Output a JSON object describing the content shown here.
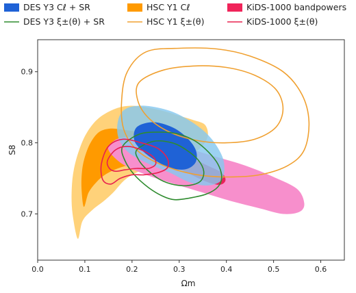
{
  "chart_data": {
    "type": "contour",
    "xlabel": "Ωm",
    "ylabel": "S8",
    "xlim": [
      0.0,
      0.65
    ],
    "ylim": [
      0.635,
      0.945
    ],
    "x_ticks": [
      "0.0",
      "0.1",
      "0.2",
      "0.3",
      "0.4",
      "0.5",
      "0.6"
    ],
    "y_ticks": [
      "0.7",
      "0.8",
      "0.9"
    ],
    "legend": {
      "placement": "top",
      "entries": [
        {
          "id": "des_cl",
          "label": "DES Y3 Cℓ + SR",
          "style": "filled",
          "color": "#1f62d6"
        },
        {
          "id": "hsc_cl",
          "label": "HSC Y1 Cℓ",
          "style": "filled",
          "color": "#ff9a00"
        },
        {
          "id": "kids_bp",
          "label": "KiDS-1000 bandpowers",
          "style": "filled",
          "color": "#f0245a"
        },
        {
          "id": "des_xi",
          "label": "DES Y3 ξ±(θ) + SR",
          "style": "line",
          "color": "#2e8b2e"
        },
        {
          "id": "hsc_xi",
          "label": "HSC Y1 ξ±(θ)",
          "style": "line",
          "color": "#f0a030"
        },
        {
          "id": "kids_xi",
          "label": "KiDS-1000 ξ±(θ)",
          "style": "line",
          "color": "#e8204f"
        }
      ]
    },
    "contours": [
      {
        "series": "hsc_cl",
        "level": "95%",
        "fill": "#ffd27a",
        "points": [
          [
            0.085,
            0.665
          ],
          [
            0.095,
            0.69
          ],
          [
            0.115,
            0.705
          ],
          [
            0.14,
            0.718
          ],
          [
            0.16,
            0.73
          ],
          [
            0.185,
            0.748
          ],
          [
            0.215,
            0.76
          ],
          [
            0.255,
            0.77
          ],
          [
            0.3,
            0.778
          ],
          [
            0.34,
            0.79
          ],
          [
            0.36,
            0.808
          ],
          [
            0.355,
            0.825
          ],
          [
            0.33,
            0.832
          ],
          [
            0.3,
            0.838
          ],
          [
            0.265,
            0.845
          ],
          [
            0.23,
            0.85
          ],
          [
            0.195,
            0.852
          ],
          [
            0.165,
            0.848
          ],
          [
            0.13,
            0.835
          ],
          [
            0.105,
            0.815
          ],
          [
            0.088,
            0.79
          ],
          [
            0.076,
            0.76
          ],
          [
            0.072,
            0.73
          ],
          [
            0.074,
            0.7
          ]
        ]
      },
      {
        "series": "hsc_cl",
        "level": "68%",
        "fill": "#ff9a00",
        "points": [
          [
            0.098,
            0.71
          ],
          [
            0.108,
            0.73
          ],
          [
            0.125,
            0.745
          ],
          [
            0.145,
            0.756
          ],
          [
            0.17,
            0.764
          ],
          [
            0.2,
            0.77
          ],
          [
            0.23,
            0.776
          ],
          [
            0.255,
            0.785
          ],
          [
            0.262,
            0.8
          ],
          [
            0.245,
            0.81
          ],
          [
            0.215,
            0.815
          ],
          [
            0.185,
            0.818
          ],
          [
            0.155,
            0.82
          ],
          [
            0.13,
            0.815
          ],
          [
            0.112,
            0.8
          ],
          [
            0.1,
            0.78
          ],
          [
            0.094,
            0.76
          ],
          [
            0.093,
            0.735
          ]
        ]
      },
      {
        "series": "kids_bp",
        "level": "95%",
        "fill": "#f78fcc",
        "points": [
          [
            0.15,
            0.79
          ],
          [
            0.18,
            0.77
          ],
          [
            0.23,
            0.755
          ],
          [
            0.29,
            0.742
          ],
          [
            0.35,
            0.73
          ],
          [
            0.41,
            0.718
          ],
          [
            0.47,
            0.708
          ],
          [
            0.52,
            0.7
          ],
          [
            0.555,
            0.703
          ],
          [
            0.565,
            0.715
          ],
          [
            0.55,
            0.735
          ],
          [
            0.5,
            0.752
          ],
          [
            0.44,
            0.768
          ],
          [
            0.38,
            0.78
          ],
          [
            0.33,
            0.79
          ],
          [
            0.28,
            0.8
          ],
          [
            0.23,
            0.806
          ],
          [
            0.185,
            0.808
          ],
          [
            0.16,
            0.802
          ]
        ]
      },
      {
        "series": "kids_bp",
        "level": "68%",
        "fill": "#e8245a",
        "points": [
          [
            0.24,
            0.785
          ],
          [
            0.28,
            0.77
          ],
          [
            0.32,
            0.757
          ],
          [
            0.355,
            0.746
          ],
          [
            0.385,
            0.741
          ],
          [
            0.398,
            0.747
          ],
          [
            0.39,
            0.758
          ],
          [
            0.36,
            0.768
          ],
          [
            0.32,
            0.78
          ],
          [
            0.28,
            0.79
          ],
          [
            0.25,
            0.795
          ],
          [
            0.238,
            0.792
          ]
        ]
      },
      {
        "series": "des_cl",
        "level": "95%",
        "fill": "#86c8ef",
        "fill_opacity": 0.82,
        "points": [
          [
            0.172,
            0.835
          ],
          [
            0.19,
            0.849
          ],
          [
            0.23,
            0.852
          ],
          [
            0.28,
            0.845
          ],
          [
            0.32,
            0.832
          ],
          [
            0.355,
            0.815
          ],
          [
            0.38,
            0.795
          ],
          [
            0.395,
            0.772
          ],
          [
            0.39,
            0.748
          ],
          [
            0.36,
            0.74
          ],
          [
            0.32,
            0.745
          ],
          [
            0.28,
            0.758
          ],
          [
            0.23,
            0.772
          ],
          [
            0.19,
            0.788
          ],
          [
            0.17,
            0.81
          ]
        ]
      },
      {
        "series": "des_cl",
        "level": "68%",
        "fill": "#1f62d6",
        "points": [
          [
            0.21,
            0.822
          ],
          [
            0.245,
            0.829
          ],
          [
            0.285,
            0.822
          ],
          [
            0.315,
            0.808
          ],
          [
            0.335,
            0.79
          ],
          [
            0.335,
            0.773
          ],
          [
            0.315,
            0.763
          ],
          [
            0.285,
            0.764
          ],
          [
            0.255,
            0.773
          ],
          [
            0.225,
            0.787
          ],
          [
            0.205,
            0.803
          ]
        ]
      },
      {
        "series": "hsc_xi",
        "level": "95%",
        "stroke": "#f0a030",
        "points": [
          [
            0.19,
            0.9
          ],
          [
            0.23,
            0.928
          ],
          [
            0.3,
            0.933
          ],
          [
            0.38,
            0.932
          ],
          [
            0.45,
            0.922
          ],
          [
            0.52,
            0.9
          ],
          [
            0.56,
            0.868
          ],
          [
            0.575,
            0.83
          ],
          [
            0.565,
            0.79
          ],
          [
            0.53,
            0.768
          ],
          [
            0.47,
            0.755
          ],
          [
            0.4,
            0.752
          ],
          [
            0.33,
            0.756
          ],
          [
            0.26,
            0.77
          ],
          [
            0.21,
            0.79
          ],
          [
            0.182,
            0.82
          ],
          [
            0.178,
            0.86
          ]
        ]
      },
      {
        "series": "hsc_xi",
        "level": "68%",
        "stroke": "#f0a030",
        "points": [
          [
            0.215,
            0.885
          ],
          [
            0.265,
            0.902
          ],
          [
            0.33,
            0.908
          ],
          [
            0.4,
            0.906
          ],
          [
            0.46,
            0.895
          ],
          [
            0.505,
            0.875
          ],
          [
            0.52,
            0.848
          ],
          [
            0.505,
            0.822
          ],
          [
            0.46,
            0.805
          ],
          [
            0.4,
            0.8
          ],
          [
            0.34,
            0.803
          ],
          [
            0.28,
            0.815
          ],
          [
            0.235,
            0.835
          ],
          [
            0.212,
            0.86
          ]
        ]
      },
      {
        "series": "des_xi",
        "level": "95%",
        "stroke": "#2e8b2e",
        "points": [
          [
            0.18,
            0.795
          ],
          [
            0.215,
            0.812
          ],
          [
            0.26,
            0.815
          ],
          [
            0.3,
            0.812
          ],
          [
            0.335,
            0.802
          ],
          [
            0.362,
            0.787
          ],
          [
            0.382,
            0.77
          ],
          [
            0.39,
            0.752
          ],
          [
            0.382,
            0.738
          ],
          [
            0.358,
            0.728
          ],
          [
            0.32,
            0.722
          ],
          [
            0.29,
            0.72
          ],
          [
            0.265,
            0.725
          ],
          [
            0.235,
            0.737
          ],
          [
            0.205,
            0.755
          ],
          [
            0.185,
            0.775
          ]
        ]
      },
      {
        "series": "des_xi",
        "level": "68%",
        "stroke": "#2e8b2e",
        "points": [
          [
            0.21,
            0.79
          ],
          [
            0.245,
            0.802
          ],
          [
            0.285,
            0.8
          ],
          [
            0.315,
            0.79
          ],
          [
            0.34,
            0.776
          ],
          [
            0.352,
            0.76
          ],
          [
            0.345,
            0.746
          ],
          [
            0.32,
            0.74
          ],
          [
            0.29,
            0.741
          ],
          [
            0.26,
            0.748
          ],
          [
            0.232,
            0.762
          ],
          [
            0.214,
            0.776
          ]
        ]
      },
      {
        "series": "kids_xi",
        "level": "95%",
        "stroke": "#e8204f",
        "points": [
          [
            0.135,
            0.77
          ],
          [
            0.15,
            0.795
          ],
          [
            0.18,
            0.805
          ],
          [
            0.22,
            0.8
          ],
          [
            0.255,
            0.792
          ],
          [
            0.275,
            0.778
          ],
          [
            0.275,
            0.765
          ],
          [
            0.255,
            0.758
          ],
          [
            0.225,
            0.755
          ],
          [
            0.2,
            0.755
          ],
          [
            0.175,
            0.75
          ],
          [
            0.155,
            0.742
          ],
          [
            0.138,
            0.748
          ]
        ]
      },
      {
        "series": "kids_xi",
        "level": "68%",
        "stroke": "#e8204f",
        "points": [
          [
            0.148,
            0.775
          ],
          [
            0.165,
            0.79
          ],
          [
            0.19,
            0.795
          ],
          [
            0.22,
            0.79
          ],
          [
            0.245,
            0.78
          ],
          [
            0.25,
            0.77
          ],
          [
            0.235,
            0.764
          ],
          [
            0.21,
            0.764
          ],
          [
            0.185,
            0.762
          ],
          [
            0.165,
            0.76
          ],
          [
            0.152,
            0.764
          ]
        ]
      }
    ]
  }
}
